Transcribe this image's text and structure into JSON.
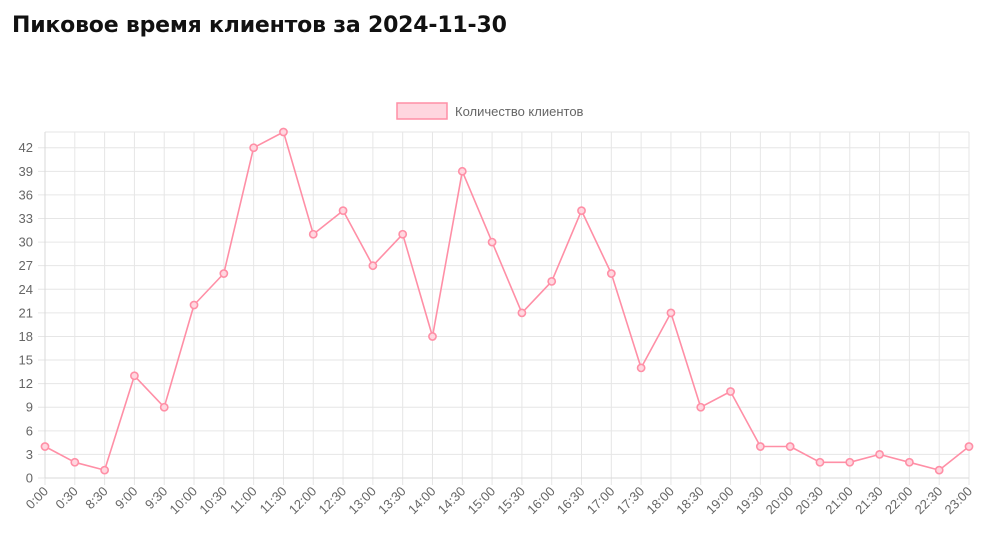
{
  "page": {
    "title": "Пиковое время клиентов за 2024-11-30"
  },
  "colors": {
    "line": "#ff8fa6",
    "point_fill": "#ffd6df",
    "grid": "#e6e6e6",
    "axis": "#d9d9d9",
    "tick_text": "#666666"
  },
  "chart_data": {
    "type": "line",
    "title": "Пиковое время клиентов за 2024-11-30",
    "legend": {
      "position": "top-center"
    },
    "categories": [
      "0:00",
      "0:30",
      "8:30",
      "9:00",
      "9:30",
      "10:00",
      "10:30",
      "11:00",
      "11:30",
      "12:00",
      "12:30",
      "13:00",
      "13:30",
      "14:00",
      "14:30",
      "15:00",
      "15:30",
      "16:00",
      "16:30",
      "17:00",
      "17:30",
      "18:00",
      "18:30",
      "19:00",
      "19:30",
      "20:00",
      "20:30",
      "21:00",
      "21:30",
      "22:00",
      "22:30",
      "23:00"
    ],
    "series": [
      {
        "name": "Количество клиентов",
        "values": [
          4,
          2,
          1,
          13,
          9,
          22,
          26,
          42,
          44,
          31,
          34,
          27,
          31,
          18,
          39,
          30,
          21,
          25,
          34,
          26,
          14,
          21,
          9,
          11,
          4,
          4,
          2,
          2,
          3,
          2,
          1,
          4
        ]
      }
    ],
    "ylim": [
      0,
      44
    ],
    "yticks": [
      0,
      3,
      6,
      9,
      12,
      15,
      18,
      21,
      24,
      27,
      30,
      33,
      36,
      39,
      42
    ],
    "grid": true
  }
}
